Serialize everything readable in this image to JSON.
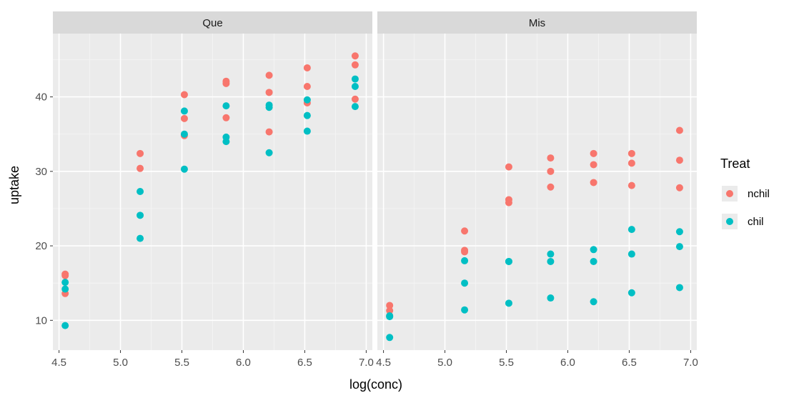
{
  "chart_data": {
    "type": "scatter",
    "xlabel": "log(conc)",
    "ylabel": "uptake",
    "xlim": [
      4.45,
      7.05
    ],
    "ylim": [
      6,
      48.5
    ],
    "x_ticks": [
      4.5,
      5.0,
      5.5,
      6.0,
      6.5,
      7.0
    ],
    "x_tick_labels": [
      "4.5",
      "5.0",
      "5.5",
      "6.0",
      "6.5",
      "7.0"
    ],
    "y_ticks": [
      10,
      20,
      30,
      40
    ],
    "y_tick_labels": [
      "10",
      "20",
      "30",
      "40"
    ],
    "grid": true,
    "legend": {
      "title": "Treat",
      "position": "right",
      "entries": [
        {
          "label": "nchil",
          "color": "#F8766D"
        },
        {
          "label": "chil",
          "color": "#00BFC4"
        }
      ]
    },
    "facets": [
      {
        "label": "Que",
        "series": [
          {
            "name": "nchil",
            "color": "#F8766D",
            "points": [
              [
                4.55,
                16.0
              ],
              [
                4.55,
                13.6
              ],
              [
                4.55,
                16.2
              ],
              [
                5.16,
                30.4
              ],
              [
                5.16,
                32.4
              ],
              [
                5.52,
                34.8
              ],
              [
                5.52,
                37.1
              ],
              [
                5.52,
                40.3
              ],
              [
                5.86,
                37.2
              ],
              [
                5.86,
                41.8
              ],
              [
                5.86,
                42.1
              ],
              [
                6.21,
                35.3
              ],
              [
                6.21,
                40.6
              ],
              [
                6.21,
                42.9
              ],
              [
                6.52,
                39.2
              ],
              [
                6.52,
                41.4
              ],
              [
                6.52,
                43.9
              ],
              [
                6.91,
                39.7
              ],
              [
                6.91,
                44.3
              ],
              [
                6.91,
                45.5
              ]
            ]
          },
          {
            "name": "chil",
            "color": "#00BFC4",
            "points": [
              [
                4.55,
                14.2
              ],
              [
                4.55,
                9.3
              ],
              [
                4.55,
                15.1
              ],
              [
                5.16,
                24.1
              ],
              [
                5.16,
                27.3
              ],
              [
                5.16,
                21.0
              ],
              [
                5.52,
                30.3
              ],
              [
                5.52,
                35.0
              ],
              [
                5.52,
                38.1
              ],
              [
                5.86,
                34.6
              ],
              [
                5.86,
                38.8
              ],
              [
                5.86,
                34.0
              ],
              [
                6.21,
                32.5
              ],
              [
                6.21,
                38.6
              ],
              [
                6.21,
                38.9
              ],
              [
                6.52,
                35.4
              ],
              [
                6.52,
                37.5
              ],
              [
                6.52,
                39.6
              ],
              [
                6.91,
                38.7
              ],
              [
                6.91,
                42.4
              ],
              [
                6.91,
                41.4
              ]
            ]
          }
        ]
      },
      {
        "label": "Mis",
        "series": [
          {
            "name": "nchil",
            "color": "#F8766D",
            "points": [
              [
                4.55,
                10.6
              ],
              [
                4.55,
                12.0
              ],
              [
                4.55,
                11.3
              ],
              [
                5.16,
                19.2
              ],
              [
                5.16,
                22.0
              ],
              [
                5.16,
                19.4
              ],
              [
                5.52,
                26.2
              ],
              [
                5.52,
                30.6
              ],
              [
                5.52,
                25.8
              ],
              [
                5.86,
                30.0
              ],
              [
                5.86,
                31.8
              ],
              [
                5.86,
                27.9
              ],
              [
                6.21,
                30.9
              ],
              [
                6.21,
                32.4
              ],
              [
                6.21,
                28.5
              ],
              [
                6.52,
                32.4
              ],
              [
                6.52,
                31.1
              ],
              [
                6.52,
                28.1
              ],
              [
                6.91,
                35.5
              ],
              [
                6.91,
                31.5
              ],
              [
                6.91,
                27.8
              ]
            ]
          },
          {
            "name": "chil",
            "color": "#00BFC4",
            "points": [
              [
                4.55,
                10.5
              ],
              [
                4.55,
                7.7
              ],
              [
                4.55,
                10.6
              ],
              [
                5.16,
                15.0
              ],
              [
                5.16,
                11.4
              ],
              [
                5.16,
                18.0
              ],
              [
                5.52,
                17.9
              ],
              [
                5.52,
                12.3
              ],
              [
                5.52,
                17.9
              ],
              [
                5.86,
                17.9
              ],
              [
                5.86,
                13.0
              ],
              [
                5.86,
                18.9
              ],
              [
                6.21,
                17.9
              ],
              [
                6.21,
                12.5
              ],
              [
                6.21,
                19.5
              ],
              [
                6.52,
                18.9
              ],
              [
                6.52,
                13.7
              ],
              [
                6.52,
                22.2
              ],
              [
                6.91,
                19.9
              ],
              [
                6.91,
                14.4
              ],
              [
                6.91,
                21.9
              ]
            ]
          }
        ]
      }
    ]
  }
}
